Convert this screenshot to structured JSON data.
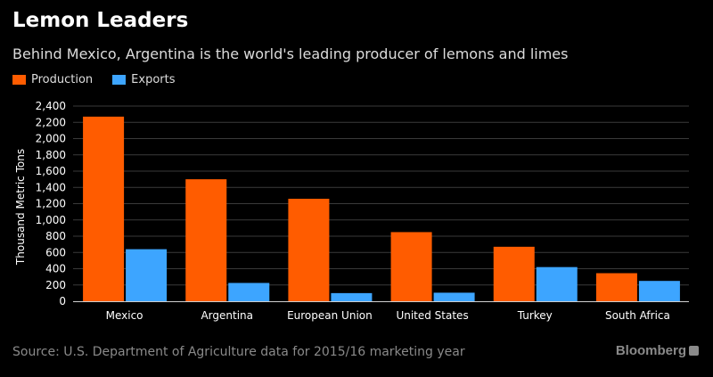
{
  "header": {
    "title": "Lemon Leaders",
    "subtitle": "Behind Mexico, Argentina is the world's leading producer of lemons and limes"
  },
  "footer": {
    "source": "Source: U.S. Department of Agriculture data for 2015/16 marketing year",
    "brand": "Bloomberg",
    "brand_icon": "bloomberg-logo-icon"
  },
  "chart_data": {
    "type": "bar",
    "title": "Lemon Leaders",
    "subtitle": "Behind Mexico, Argentina is the world's leading producer of lemons and limes",
    "xlabel": "",
    "ylabel": "Thousand Metric Tons",
    "categories": [
      "Mexico",
      "Argentina",
      "European Union",
      "United States",
      "Turkey",
      "South Africa"
    ],
    "series": [
      {
        "name": "Production",
        "color": "#ff5c00",
        "values": [
          2270,
          1500,
          1260,
          850,
          670,
          345
        ]
      },
      {
        "name": "Exports",
        "color": "#3da5ff",
        "values": [
          640,
          225,
          100,
          105,
          420,
          250
        ]
      }
    ],
    "ylim": [
      0,
      2400
    ],
    "yticks": [
      "0",
      "200",
      "400",
      "600",
      "800",
      "1,000",
      "1,200",
      "1,400",
      "1,600",
      "1,800",
      "2,000",
      "2,200",
      "2,400"
    ],
    "grid": true,
    "legend_position": "top-left"
  }
}
